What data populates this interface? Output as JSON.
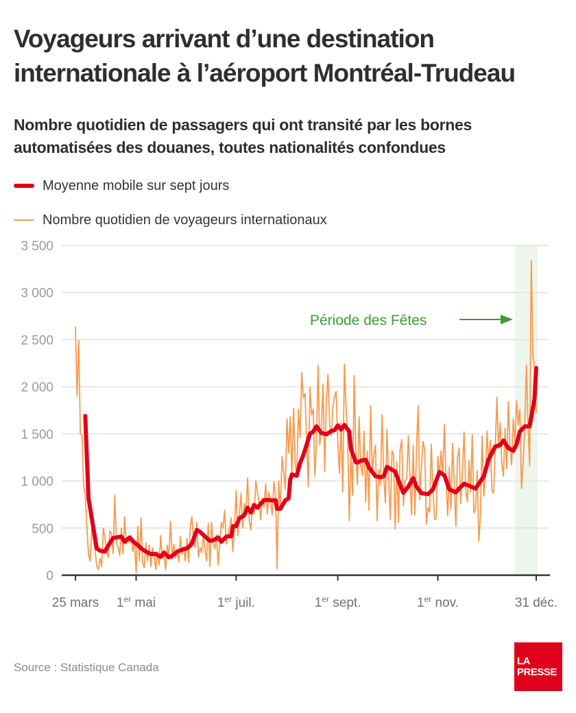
{
  "title": "Voyageurs arrivant d’une destination internationale à l’aéroport Montréal-Trudeau",
  "subtitle": "Nombre quotidien de passagers qui ont transité par les bornes automatisées des douanes, toutes nationalités confondues",
  "source": "Source : Statistique Canada",
  "logo": {
    "line1": "LA",
    "line2": "PRESSE"
  },
  "colors": {
    "moving_average": "#e0001b",
    "daily": "#f9994a",
    "holiday_shade": "#eef5ec",
    "annotation": "#3f9a37",
    "grid": "#e6e6e6",
    "axis": "#333333",
    "logo_bg": "#e0001b"
  },
  "chart_data": {
    "type": "line",
    "title": "Voyageurs arrivant d’une destination internationale à l’aéroport Montréal-Trudeau",
    "xlabel": "",
    "ylabel": "",
    "x_unit": "day of year",
    "xlim": [
      84,
      365
    ],
    "ylim": [
      0,
      3500
    ],
    "grid": true,
    "legend_position": "top-left",
    "yticks": [
      {
        "value": 0,
        "label": "0"
      },
      {
        "value": 500,
        "label": "500"
      },
      {
        "value": 1000,
        "label": "1 000"
      },
      {
        "value": 1500,
        "label": "1 500"
      },
      {
        "value": 2000,
        "label": "2 000"
      },
      {
        "value": 2500,
        "label": "2 500"
      },
      {
        "value": 3000,
        "label": "3 000"
      },
      {
        "value": 3500,
        "label": "3 500"
      }
    ],
    "xticks": [
      {
        "day": 84,
        "label": "25 mars",
        "sup": ""
      },
      {
        "day": 121,
        "label": " mai",
        "prefix": "1",
        "sup": "er"
      },
      {
        "day": 182,
        "label": " juil.",
        "prefix": "1",
        "sup": "er"
      },
      {
        "day": 244,
        "label": " sept.",
        "prefix": "1",
        "sup": "er"
      },
      {
        "day": 305,
        "label": " nov.",
        "prefix": "1",
        "sup": "er"
      },
      {
        "day": 365,
        "label": "31 déc.",
        "sup": ""
      }
    ],
    "highlight": {
      "start_day": 352,
      "end_day": 365,
      "label": "Période des Fêtes"
    },
    "series": [
      {
        "name": "Moyenne mobile sur sept jours",
        "points": [
          [
            90,
            1690
          ],
          [
            92,
            815
          ],
          [
            97,
            285
          ],
          [
            99,
            260
          ],
          [
            102,
            250
          ],
          [
            103,
            285
          ],
          [
            107,
            395
          ],
          [
            112,
            410
          ],
          [
            114,
            355
          ],
          [
            117,
            400
          ],
          [
            120,
            345
          ],
          [
            122,
            320
          ],
          [
            124,
            285
          ],
          [
            127,
            250
          ],
          [
            130,
            225
          ],
          [
            133,
            225
          ],
          [
            136,
            195
          ],
          [
            138,
            240
          ],
          [
            141,
            190
          ],
          [
            143,
            205
          ],
          [
            146,
            250
          ],
          [
            149,
            270
          ],
          [
            152,
            285
          ],
          [
            154,
            315
          ],
          [
            155,
            335
          ],
          [
            158,
            480
          ],
          [
            160,
            460
          ],
          [
            164,
            395
          ],
          [
            166,
            365
          ],
          [
            168,
            370
          ],
          [
            171,
            400
          ],
          [
            173,
            355
          ],
          [
            176,
            410
          ],
          [
            179,
            415
          ],
          [
            180,
            520
          ],
          [
            182,
            520
          ],
          [
            184,
            605
          ],
          [
            187,
            635
          ],
          [
            189,
            715
          ],
          [
            191,
            665
          ],
          [
            193,
            745
          ],
          [
            195,
            715
          ],
          [
            197,
            760
          ],
          [
            199,
            795
          ],
          [
            201,
            800
          ],
          [
            203,
            795
          ],
          [
            206,
            795
          ],
          [
            207,
            705
          ],
          [
            209,
            705
          ],
          [
            212,
            795
          ],
          [
            214,
            815
          ],
          [
            215,
            1015
          ],
          [
            216,
            1070
          ],
          [
            219,
            1055
          ],
          [
            221,
            1190
          ],
          [
            223,
            1275
          ],
          [
            225,
            1385
          ],
          [
            227,
            1500
          ],
          [
            229,
            1525
          ],
          [
            231,
            1580
          ],
          [
            234,
            1510
          ],
          [
            237,
            1495
          ],
          [
            240,
            1530
          ],
          [
            242,
            1540
          ],
          [
            244,
            1590
          ],
          [
            246,
            1545
          ],
          [
            248,
            1595
          ],
          [
            251,
            1525
          ],
          [
            252,
            1340
          ],
          [
            255,
            1200
          ],
          [
            256,
            1195
          ],
          [
            258,
            1215
          ],
          [
            261,
            1225
          ],
          [
            263,
            1145
          ],
          [
            267,
            1050
          ],
          [
            270,
            1040
          ],
          [
            272,
            1050
          ],
          [
            274,
            1150
          ],
          [
            276,
            1130
          ],
          [
            279,
            1100
          ],
          [
            282,
            960
          ],
          [
            284,
            875
          ],
          [
            287,
            940
          ],
          [
            290,
            1030
          ],
          [
            292,
            940
          ],
          [
            295,
            870
          ],
          [
            299,
            860
          ],
          [
            302,
            910
          ],
          [
            306,
            1095
          ],
          [
            309,
            1060
          ],
          [
            312,
            910
          ],
          [
            316,
            880
          ],
          [
            318,
            920
          ],
          [
            321,
            970
          ],
          [
            324,
            950
          ],
          [
            328,
            920
          ],
          [
            333,
            1050
          ],
          [
            336,
            1230
          ],
          [
            340,
            1365
          ],
          [
            343,
            1380
          ],
          [
            345,
            1430
          ],
          [
            348,
            1350
          ],
          [
            351,
            1320
          ],
          [
            353,
            1390
          ],
          [
            355,
            1525
          ],
          [
            358,
            1580
          ],
          [
            359,
            1580
          ],
          [
            361,
            1580
          ],
          [
            364,
            1875
          ],
          [
            365,
            2200
          ]
        ]
      },
      {
        "name": "Nombre quotidien de voyageurs internationaux",
        "start_day": 84,
        "values": [
          2640,
          1900,
          2490,
          1500,
          1490,
          950,
          850,
          500,
          220,
          150,
          490,
          380,
          260,
          100,
          60,
          180,
          90,
          500,
          400,
          280,
          190,
          470,
          440,
          230,
          850,
          340,
          300,
          210,
          500,
          230,
          620,
          330,
          400,
          340,
          420,
          250,
          360,
          25,
          520,
          150,
          610,
          130,
          80,
          340,
          150,
          320,
          90,
          290,
          200,
          60,
          250,
          110,
          420,
          180,
          230,
          60,
          320,
          200,
          570,
          170,
          330,
          180,
          260,
          140,
          410,
          220,
          300,
          150,
          390,
          140,
          500,
          620,
          380,
          290,
          560,
          190,
          290,
          240,
          420,
          280,
          150,
          550,
          90,
          560,
          340,
          280,
          430,
          110,
          310,
          560,
          500,
          690,
          330,
          430,
          510,
          610,
          250,
          520,
          900,
          420,
          650,
          870,
          500,
          760,
          680,
          1030,
          580,
          480,
          760,
          650,
          1000,
          880,
          780,
          590,
          820,
          720,
          970,
          650,
          880,
          780,
          640,
          990,
          850,
          70,
          1000,
          690,
          1260,
          1100,
          910,
          1660,
          1300,
          1680,
          1050,
          1770,
          1200,
          1040,
          1760,
          1460,
          2150,
          1880,
          1930,
          1420,
          940,
          1990,
          1700,
          1760,
          1050,
          1400,
          2230,
          1380,
          1560,
          2030,
          1100,
          1850,
          2130,
          1600,
          1480,
          1780,
          1900,
          1950,
          1420,
          1080,
          1620,
          880,
          2240,
          1780,
          1480,
          580,
          1300,
          850,
          2120,
          1320,
          960,
          1680,
          1170,
          1060,
          1530,
          780,
          1320,
          690,
          1800,
          1100,
          1280,
          1380,
          580,
          1120,
          960,
          1700,
          1050,
          770,
          1550,
          1030,
          590,
          1320,
          1280,
          490,
          1200,
          560,
          1330,
          1440,
          740,
          1000,
          1020,
          1480,
          1050,
          640,
          1380,
          640,
          1330,
          1800,
          800,
          1140,
          1420,
          1330,
          540,
          720,
          670,
          1390,
          950,
          590,
          600,
          1260,
          1060,
          1320,
          1050,
          1600,
          1000,
          630,
          1150,
          700,
          1400,
          980,
          520,
          1250,
          1350,
          760,
          1100,
          1520,
          900,
          780,
          1220,
          880,
          1490,
          660,
          700,
          1110,
          360,
          640,
          1480,
          840,
          1050,
          1530,
          1180,
          1430,
          900,
          870,
          1330,
          1890,
          1350,
          1620,
          1190,
          1050,
          1560,
          1130,
          1840,
          1360,
          1170,
          1660,
          1410,
          1850,
          1600,
          1760,
          920,
          1190,
          1600,
          2230,
          1620,
          1160,
          3340,
          2340,
          2200,
          1720
        ]
      }
    ]
  }
}
